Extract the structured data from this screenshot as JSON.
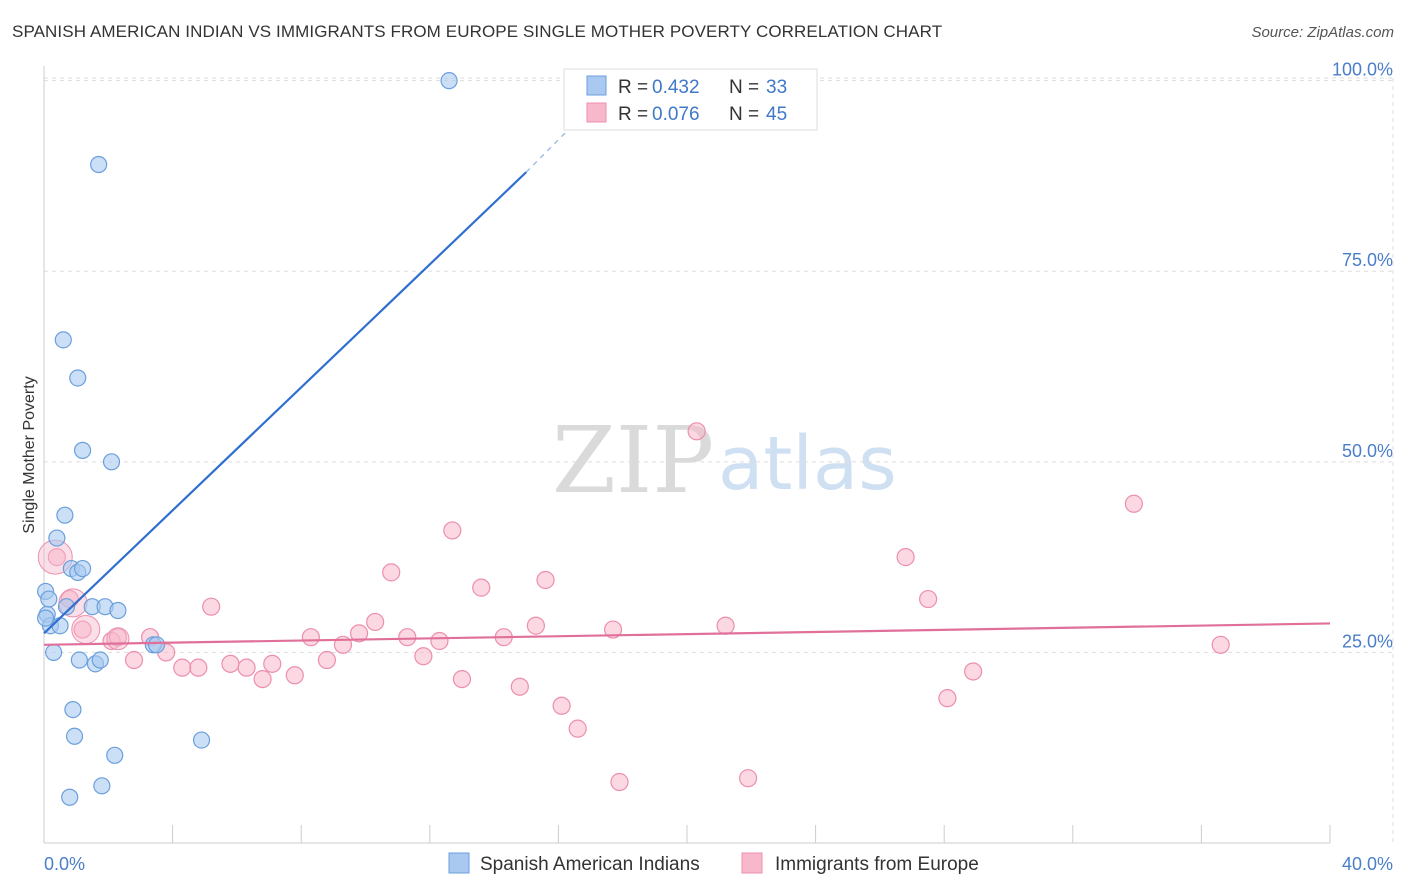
{
  "title": "SPANISH AMERICAN INDIAN VS IMMIGRANTS FROM EUROPE SINGLE MOTHER POVERTY CORRELATION CHART",
  "source": "Source: ZipAtlas.com",
  "watermark": {
    "part1": "ZIP",
    "part2": "atlas"
  },
  "colors": {
    "blue_fill": "#a9c9f0",
    "blue_stroke": "#6b9fdc",
    "blue_line": "#2f6fd0",
    "pink_fill": "#f7b8cb",
    "pink_stroke": "#ec8fae",
    "pink_line": "#e0709a",
    "tick_text": "#4a7ec9",
    "grid": "#dddddd"
  },
  "legend": {
    "series1": {
      "r_label": "R = ",
      "r_value": "0.432",
      "n_label": "N = ",
      "n_value": "33"
    },
    "series2": {
      "r_label": "R = ",
      "r_value": "0.076",
      "n_label": "N = ",
      "n_value": "45"
    }
  },
  "chart_data": {
    "type": "scatter",
    "title": "SPANISH AMERICAN INDIAN VS IMMIGRANTS FROM EUROPE SINGLE MOTHER POVERTY CORRELATION CHART",
    "xlabel": "",
    "ylabel": "Single Mother Poverty",
    "xlim": [
      0,
      40
    ],
    "ylim": [
      0,
      102
    ],
    "x_tick_labels": {
      "min": "0.0%",
      "max": "40.0%"
    },
    "y_ticks": [
      {
        "value": 25,
        "label": "25.0%"
      },
      {
        "value": 50,
        "label": "50.0%"
      },
      {
        "value": 75,
        "label": "75.0%"
      },
      {
        "value": 100,
        "label": "100.0%"
      }
    ],
    "series": [
      {
        "name": "Spanish American Indians",
        "color": "#a9c9f0",
        "points": [
          [
            0.05,
            33.0
          ],
          [
            0.1,
            30.0
          ],
          [
            0.15,
            32.0
          ],
          [
            0.2,
            28.5
          ],
          [
            0.3,
            25.0
          ],
          [
            0.4,
            40.0
          ],
          [
            0.5,
            28.5
          ],
          [
            0.6,
            66.0
          ],
          [
            0.65,
            43.0
          ],
          [
            0.7,
            31.0
          ],
          [
            0.8,
            6.0
          ],
          [
            0.85,
            36.0
          ],
          [
            0.9,
            17.5
          ],
          [
            0.95,
            14.0
          ],
          [
            1.05,
            61.0
          ],
          [
            1.05,
            35.5
          ],
          [
            1.1,
            24.0
          ],
          [
            1.2,
            51.5
          ],
          [
            1.2,
            36.0
          ],
          [
            1.5,
            31.0
          ],
          [
            1.6,
            23.5
          ],
          [
            1.7,
            89.0
          ],
          [
            1.75,
            24.0
          ],
          [
            1.8,
            7.5
          ],
          [
            1.9,
            31.0
          ],
          [
            2.1,
            50.0
          ],
          [
            2.2,
            11.5
          ],
          [
            2.3,
            30.5
          ],
          [
            3.4,
            26.0
          ],
          [
            3.5,
            26.0
          ],
          [
            4.9,
            13.5
          ],
          [
            12.6,
            100.0
          ],
          [
            0.05,
            29.5
          ]
        ],
        "trend": {
          "x1": 0,
          "y1": 27.5,
          "x2": 15.0,
          "y2": 88.0,
          "dash_to_x": 16.6,
          "dash_to_y": 94.8
        }
      },
      {
        "name": "Immigrants from Europe",
        "color": "#f7b8cb",
        "points": [
          [
            0.4,
            37.5
          ],
          [
            0.8,
            32.0
          ],
          [
            1.2,
            28.0
          ],
          [
            2.1,
            26.5
          ],
          [
            2.3,
            27.0
          ],
          [
            2.8,
            24.0
          ],
          [
            3.3,
            27.0
          ],
          [
            3.8,
            25.0
          ],
          [
            4.3,
            23.0
          ],
          [
            4.8,
            23.0
          ],
          [
            5.2,
            31.0
          ],
          [
            5.8,
            23.5
          ],
          [
            6.3,
            23.0
          ],
          [
            6.8,
            21.5
          ],
          [
            7.1,
            23.5
          ],
          [
            7.8,
            22.0
          ],
          [
            8.3,
            27.0
          ],
          [
            8.8,
            24.0
          ],
          [
            9.3,
            26.0
          ],
          [
            9.8,
            27.5
          ],
          [
            10.3,
            29.0
          ],
          [
            10.8,
            35.5
          ],
          [
            11.3,
            27.0
          ],
          [
            11.8,
            24.5
          ],
          [
            12.3,
            26.5
          ],
          [
            12.7,
            41.0
          ],
          [
            13.0,
            21.5
          ],
          [
            13.6,
            33.5
          ],
          [
            14.3,
            27.0
          ],
          [
            14.8,
            20.5
          ],
          [
            15.3,
            28.5
          ],
          [
            15.6,
            34.5
          ],
          [
            16.1,
            18.0
          ],
          [
            16.6,
            15.0
          ],
          [
            17.7,
            28.0
          ],
          [
            17.9,
            8.0
          ],
          [
            20.3,
            54.0
          ],
          [
            21.2,
            28.5
          ],
          [
            21.9,
            8.5
          ],
          [
            26.8,
            37.5
          ],
          [
            27.5,
            32.0
          ],
          [
            28.1,
            19.0
          ],
          [
            28.9,
            22.5
          ],
          [
            33.9,
            44.5
          ],
          [
            36.6,
            26.0
          ]
        ],
        "trend": {
          "x1": 0,
          "y1": 26.0,
          "x2": 40.0,
          "y2": 28.8
        }
      }
    ]
  }
}
